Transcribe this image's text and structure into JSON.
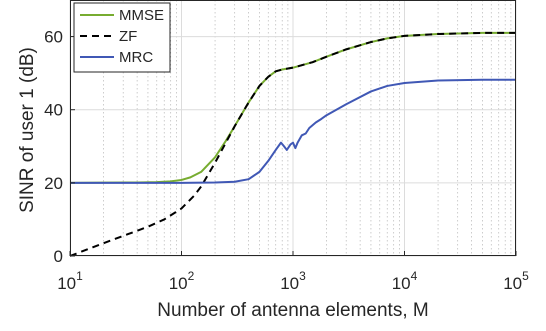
{
  "chart_data": {
    "type": "line",
    "xlabel": "Number of antenna elements, M",
    "ylabel": "SINR of user 1 (dB)",
    "xscale": "log",
    "xlim": [
      10,
      100000
    ],
    "ylim": [
      0,
      70
    ],
    "grid": true,
    "legend_position": "top-left",
    "x_ticks": [
      {
        "value": 10,
        "base": "10",
        "exp": "1"
      },
      {
        "value": 100,
        "base": "10",
        "exp": "2"
      },
      {
        "value": 1000,
        "base": "10",
        "exp": "3"
      },
      {
        "value": 10000,
        "base": "10",
        "exp": "4"
      },
      {
        "value": 100000,
        "base": "10",
        "exp": "5"
      }
    ],
    "y_ticks": [
      {
        "value": 0,
        "label": "0"
      },
      {
        "value": 20,
        "label": "20"
      },
      {
        "value": 40,
        "label": "40"
      },
      {
        "value": 60,
        "label": "60"
      }
    ],
    "series": [
      {
        "name": "MMSE",
        "color": "#77ac30",
        "dash": "solid",
        "points": [
          [
            10,
            20
          ],
          [
            20,
            20.05
          ],
          [
            40,
            20.1
          ],
          [
            60,
            20.2
          ],
          [
            80,
            20.4
          ],
          [
            100,
            20.8
          ],
          [
            120,
            21.5
          ],
          [
            150,
            23
          ],
          [
            200,
            27
          ],
          [
            250,
            31.5
          ],
          [
            300,
            35.5
          ],
          [
            400,
            42
          ],
          [
            500,
            46.5
          ],
          [
            600,
            49
          ],
          [
            700,
            50.5
          ],
          [
            800,
            51
          ],
          [
            1000,
            51.5
          ],
          [
            1500,
            53
          ],
          [
            2000,
            54.5
          ],
          [
            3000,
            56.5
          ],
          [
            5000,
            58.5
          ],
          [
            7000,
            59.5
          ],
          [
            10000,
            60.2
          ],
          [
            20000,
            60.7
          ],
          [
            50000,
            61
          ],
          [
            100000,
            61
          ]
        ]
      },
      {
        "name": "ZF",
        "color": "#000000",
        "dash": "dashed",
        "points": [
          [
            10,
            0
          ],
          [
            20,
            3.5
          ],
          [
            30,
            5.5
          ],
          [
            50,
            8
          ],
          [
            70,
            10
          ],
          [
            100,
            13
          ],
          [
            130,
            16.5
          ],
          [
            150,
            19
          ],
          [
            200,
            25.5
          ],
          [
            250,
            31
          ],
          [
            300,
            35.5
          ],
          [
            400,
            42
          ],
          [
            500,
            46.5
          ],
          [
            600,
            49
          ],
          [
            700,
            50.5
          ],
          [
            800,
            51
          ],
          [
            1000,
            51.5
          ],
          [
            1500,
            53
          ],
          [
            2000,
            54.5
          ],
          [
            3000,
            56.5
          ],
          [
            5000,
            58.5
          ],
          [
            7000,
            59.5
          ],
          [
            10000,
            60.2
          ],
          [
            20000,
            60.7
          ],
          [
            50000,
            61
          ],
          [
            100000,
            61
          ]
        ]
      },
      {
        "name": "MRC",
        "color": "#4058b5",
        "dash": "solid",
        "points": [
          [
            10,
            20
          ],
          [
            100,
            20
          ],
          [
            200,
            20.1
          ],
          [
            300,
            20.3
          ],
          [
            400,
            21
          ],
          [
            500,
            23
          ],
          [
            600,
            26
          ],
          [
            700,
            29
          ],
          [
            780,
            31
          ],
          [
            830,
            30
          ],
          [
            880,
            29
          ],
          [
            950,
            30.5
          ],
          [
            1000,
            31
          ],
          [
            1050,
            29.5
          ],
          [
            1100,
            31
          ],
          [
            1200,
            33
          ],
          [
            1300,
            33.5
          ],
          [
            1400,
            35
          ],
          [
            1600,
            36.5
          ],
          [
            1800,
            37.5
          ],
          [
            2000,
            38.5
          ],
          [
            3000,
            41.5
          ],
          [
            5000,
            45
          ],
          [
            7000,
            46.5
          ],
          [
            10000,
            47.3
          ],
          [
            20000,
            48
          ],
          [
            50000,
            48.2
          ],
          [
            100000,
            48.2
          ]
        ]
      }
    ]
  }
}
